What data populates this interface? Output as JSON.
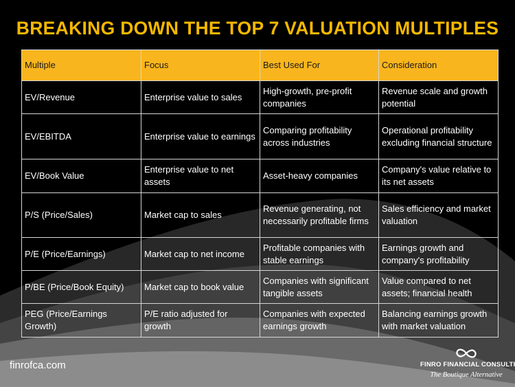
{
  "title": "BREAKING DOWN THE TOP 7 VALUATION MULTIPLES",
  "table": {
    "headers": [
      "Multiple",
      "Focus",
      "Best Used For",
      "Consideration"
    ],
    "rows": [
      [
        "EV/Revenue",
        "Enterprise value to sales",
        "High-growth, pre-profit companies",
        "Revenue scale and growth potential"
      ],
      [
        "EV/EBITDA",
        "Enterprise value to earnings",
        "Comparing profitability across industries",
        "Operational profitability excluding financial structure"
      ],
      [
        "EV/Book Value",
        "Enterprise value to net assets",
        "Asset-heavy companies",
        "Company's value relative to its net assets"
      ],
      [
        "P/S (Price/Sales)",
        "Market cap to sales",
        "Revenue generating, not necessarily profitable firms",
        "Sales efficiency and market valuation"
      ],
      [
        "P/E (Price/Earnings)",
        "Market cap to net income",
        "Profitable companies with stable earnings",
        "Earnings growth and company's profitability"
      ],
      [
        "P/BE (Price/Book Equity)",
        "Market cap to book value",
        "Companies with significant tangible assets",
        "Value compared to net assets; financial health"
      ],
      [
        "PEG (Price/Earnings Growth)",
        "P/E ratio adjusted for growth",
        "Companies with expected earnings growth",
        "Balancing earnings growth with market valuation"
      ]
    ]
  },
  "footer": {
    "website": "finrofca.com",
    "brand_name": "FINRO FINANCIAL CONSULTING",
    "brand_tagline": "The Boutique Alternative",
    "logo_icon": "infinity-icon"
  },
  "colors": {
    "accent": "#F5B800",
    "header_fill": "#F9B51D",
    "background": "#000000"
  }
}
